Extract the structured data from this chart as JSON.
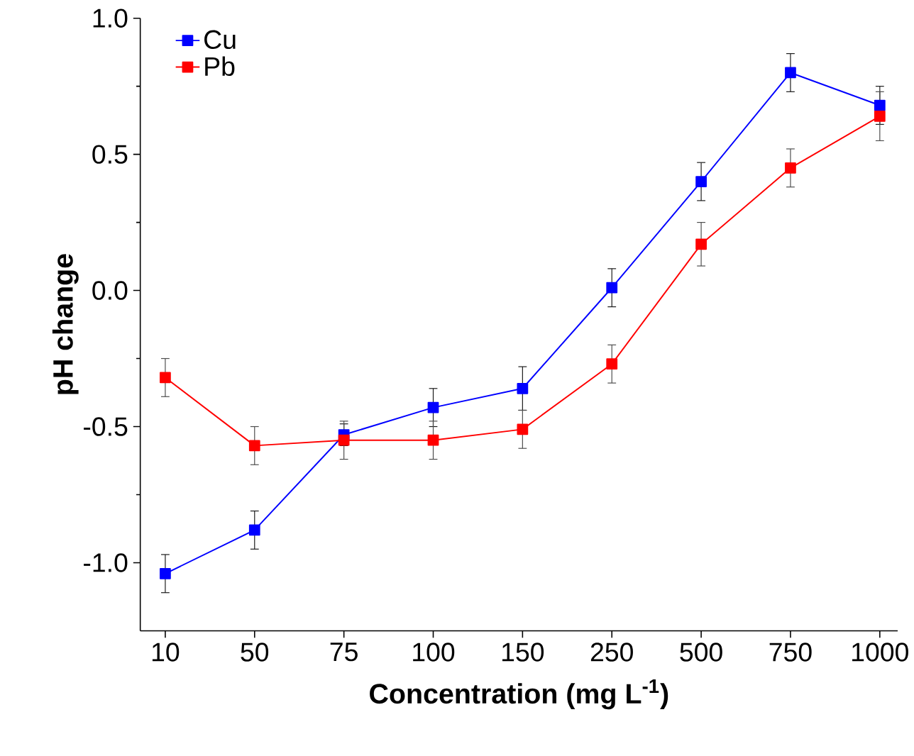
{
  "chart_data": {
    "type": "line",
    "xlabel": "Concentration (mg L$^{-1}$)",
    "ylabel": "pH change",
    "categories": [
      "10",
      "50",
      "75",
      "100",
      "150",
      "250",
      "500",
      "750",
      "1000"
    ],
    "series": [
      {
        "name": "Cu",
        "color": "#0000ff",
        "values": [
          -1.04,
          -0.88,
          -0.53,
          -0.43,
          -0.36,
          0.01,
          0.4,
          0.8,
          0.68
        ],
        "errors": [
          0.07,
          0.07,
          0.04,
          0.07,
          0.08,
          0.07,
          0.07,
          0.07,
          0.07
        ]
      },
      {
        "name": "Pb",
        "color": "#ff0000",
        "values": [
          -0.32,
          -0.57,
          -0.55,
          -0.55,
          -0.51,
          -0.27,
          0.17,
          0.45,
          0.64
        ],
        "errors": [
          0.07,
          0.07,
          0.07,
          0.07,
          0.07,
          0.07,
          0.08,
          0.07,
          0.09
        ]
      }
    ],
    "ylim": [
      -1.25,
      1.0
    ],
    "yticks": [
      {
        "value": -1.0,
        "label": "-1.0"
      },
      {
        "value": -0.5,
        "label": "-0.5"
      },
      {
        "value": 0.0,
        "label": "0.0"
      },
      {
        "value": 0.5,
        "label": "0.5"
      },
      {
        "value": 1.0,
        "label": "1.0"
      }
    ],
    "legend": "top left",
    "marker": "square",
    "line_style": "solid",
    "grid": false
  }
}
